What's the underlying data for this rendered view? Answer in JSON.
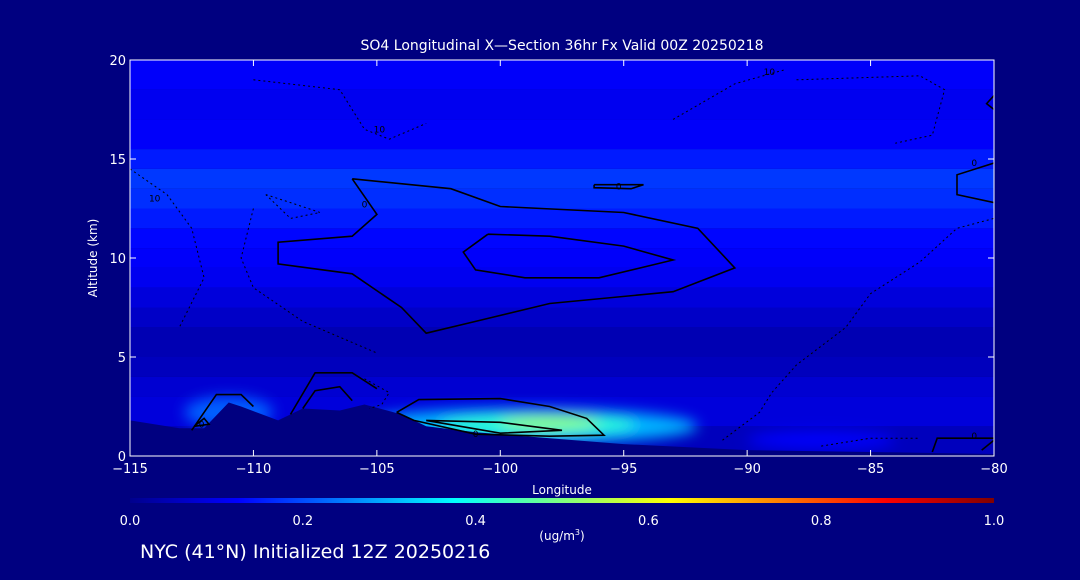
{
  "chart_data": {
    "type": "heatmap",
    "title": "SO4 Longitudinal X—Section 36hr  Fx Valid 00Z 20250218",
    "xlabel": "Longitude",
    "ylabel": "Altitude (km)",
    "xlim": [
      -115,
      -80
    ],
    "ylim": [
      0,
      20
    ],
    "xticks": [
      {
        "value": -115,
        "label": "−115"
      },
      {
        "value": -110,
        "label": "−110"
      },
      {
        "value": -105,
        "label": "−105"
      },
      {
        "value": -100,
        "label": "−100"
      },
      {
        "value": -95,
        "label": "−95"
      },
      {
        "value": -90,
        "label": "−90"
      },
      {
        "value": -85,
        "label": "−85"
      },
      {
        "value": -80,
        "label": "−80"
      }
    ],
    "yticks": [
      {
        "value": 0,
        "label": "0"
      },
      {
        "value": 5,
        "label": "5"
      },
      {
        "value": 10,
        "label": "10"
      },
      {
        "value": 15,
        "label": "15"
      },
      {
        "value": 20,
        "label": "20"
      }
    ],
    "background_layers": [
      {
        "y0": 0,
        "y1": 1.5,
        "value": 0.06
      },
      {
        "y0": 1.5,
        "y1": 3,
        "value": 0.09
      },
      {
        "y0": 3,
        "y1": 4,
        "value": 0.08
      },
      {
        "y0": 4,
        "y1": 5,
        "value": 0.06
      },
      {
        "y0": 5,
        "y1": 6.5,
        "value": 0.05
      },
      {
        "y0": 6.5,
        "y1": 7.5,
        "value": 0.07
      },
      {
        "y0": 7.5,
        "y1": 8.5,
        "value": 0.09
      },
      {
        "y0": 8.5,
        "y1": 9.5,
        "value": 0.11
      },
      {
        "y0": 9.5,
        "y1": 10.5,
        "value": 0.12
      },
      {
        "y0": 10.5,
        "y1": 11.5,
        "value": 0.13
      },
      {
        "y0": 11.5,
        "y1": 12.5,
        "value": 0.15
      },
      {
        "y0": 12.5,
        "y1": 13.5,
        "value": 0.17
      },
      {
        "y0": 13.5,
        "y1": 14.5,
        "value": 0.18
      },
      {
        "y0": 14.5,
        "y1": 15.5,
        "value": 0.15
      },
      {
        "y0": 15.5,
        "y1": 17,
        "value": 0.12
      },
      {
        "y0": 17,
        "y1": 18.5,
        "value": 0.11
      },
      {
        "y0": 18.5,
        "y1": 20,
        "value": 0.12
      }
    ],
    "plumes": [
      {
        "cx": -99,
        "cy": 1.5,
        "rx": 7,
        "ry": 0.9,
        "value": 0.3
      },
      {
        "cx": -98.5,
        "cy": 1.6,
        "rx": 4,
        "ry": 0.5,
        "value": 0.42
      },
      {
        "cx": -98,
        "cy": 1.7,
        "rx": 2,
        "ry": 0.3,
        "value": 0.52
      },
      {
        "cx": -111,
        "cy": 2.2,
        "rx": 1.8,
        "ry": 0.8,
        "value": 0.22
      },
      {
        "cx": -87,
        "cy": 0.8,
        "rx": 3,
        "ry": 0.5,
        "value": 0.12
      }
    ],
    "terrain": [
      [
        -115,
        1.8
      ],
      [
        -113,
        1.4
      ],
      [
        -112,
        1.4
      ],
      [
        -111,
        2.7
      ],
      [
        -110.5,
        2.5
      ],
      [
        -109,
        1.8
      ],
      [
        -108,
        2.4
      ],
      [
        -106.5,
        2.3
      ],
      [
        -105.5,
        2.6
      ],
      [
        -104,
        2.1
      ],
      [
        -103,
        1.5
      ],
      [
        -101,
        1.2
      ],
      [
        -98,
        0.9
      ],
      [
        -95,
        0.6
      ],
      [
        -90,
        0.3
      ],
      [
        -85,
        0.2
      ],
      [
        -80,
        0.1
      ]
    ],
    "contours_solid": [
      {
        "label": "0",
        "label_at": [
          -105.5,
          12.7
        ],
        "points": [
          [
            -106,
            14
          ],
          [
            -102,
            13.5
          ],
          [
            -100,
            12.6
          ],
          [
            -95,
            12.3
          ],
          [
            -92,
            11.5
          ],
          [
            -90.5,
            9.5
          ],
          [
            -93,
            8.3
          ],
          [
            -98,
            7.7
          ],
          [
            -101,
            6.8
          ],
          [
            -103,
            6.2
          ],
          [
            -104,
            7.5
          ],
          [
            -106,
            9.2
          ],
          [
            -109,
            9.7
          ],
          [
            -109,
            10.8
          ],
          [
            -106,
            11.1
          ],
          [
            -105,
            12.2
          ],
          [
            -106,
            14
          ]
        ]
      },
      {
        "label": "",
        "points": [
          [
            -100.5,
            11.2
          ],
          [
            -98,
            11.1
          ],
          [
            -95,
            10.6
          ],
          [
            -93,
            9.9
          ],
          [
            -96,
            9
          ],
          [
            -99,
            9
          ],
          [
            -101,
            9.4
          ],
          [
            -101.5,
            10.3
          ],
          [
            -100.5,
            11.2
          ]
        ]
      },
      {
        "label": "0",
        "label_at": [
          -95.2,
          13.6
        ],
        "points": [
          [
            -96.2,
            13.7
          ],
          [
            -94.2,
            13.7
          ],
          [
            -94.7,
            13.5
          ],
          [
            -96.2,
            13.55
          ],
          [
            -96.2,
            13.7
          ]
        ]
      },
      {
        "label": "0",
        "label_at": [
          -80.8,
          14.8
        ],
        "points": [
          [
            -80,
            14.8
          ],
          [
            -81.5,
            14.2
          ],
          [
            -81.5,
            13.2
          ],
          [
            -80,
            12.8
          ]
        ]
      },
      {
        "label": "",
        "points": [
          [
            -112.5,
            1.3
          ],
          [
            -111.5,
            3.1
          ],
          [
            -110.5,
            3.1
          ],
          [
            -110,
            2.5
          ]
        ]
      },
      {
        "label": "",
        "points": [
          [
            -108.5,
            2.1
          ],
          [
            -107.5,
            4.2
          ],
          [
            -106,
            4.2
          ],
          [
            -105,
            3.4
          ]
        ]
      },
      {
        "label": "",
        "points": [
          [
            -108,
            2.4
          ],
          [
            -107.5,
            3.3
          ],
          [
            -106.5,
            3.5
          ],
          [
            -106,
            2.8
          ]
        ]
      },
      {
        "label": "",
        "points": [
          [
            -104.2,
            2.2
          ],
          [
            -103.3,
            2.85
          ],
          [
            -100,
            2.9
          ],
          [
            -98,
            2.5
          ],
          [
            -96.5,
            1.9
          ],
          [
            -95.8,
            1.05
          ],
          [
            -98,
            1
          ],
          [
            -101,
            1.1
          ],
          [
            -103.5,
            1.8
          ],
          [
            -104.2,
            2.2
          ]
        ]
      },
      {
        "label": "0",
        "label_at": [
          -101,
          1.1
        ],
        "points": [
          [
            -103,
            1.8
          ],
          [
            -100,
            1.7
          ],
          [
            -97.5,
            1.3
          ],
          [
            -100,
            1.15
          ],
          [
            -103,
            1.8
          ]
        ]
      },
      {
        "label": "0",
        "label_at": [
          -112.1,
          1.6
        ],
        "points": [
          [
            -112.4,
            1.5
          ],
          [
            -112,
            1.9
          ],
          [
            -111.8,
            1.6
          ],
          [
            -112.4,
            1.5
          ]
        ]
      },
      {
        "label": "0",
        "label_at": [
          -80.8,
          1
        ],
        "points": [
          [
            -82.5,
            0.2
          ],
          [
            -82.3,
            0.9
          ],
          [
            -80,
            0.9
          ]
        ]
      },
      {
        "label": "",
        "points": [
          [
            -80.5,
            0.3
          ],
          [
            -80,
            0.8
          ]
        ]
      },
      {
        "label": "",
        "points": [
          [
            -80,
            18.2
          ],
          [
            -80.3,
            17.8
          ],
          [
            -80,
            17.5
          ]
        ]
      }
    ],
    "contours_dashed": [
      {
        "label": "10",
        "label_at": [
          -114,
          13
        ],
        "points": [
          [
            -115,
            14.5
          ],
          [
            -113.5,
            13.2
          ],
          [
            -112.5,
            11.5
          ],
          [
            -112,
            9
          ],
          [
            -113,
            6.5
          ]
        ]
      },
      {
        "label": "10",
        "label_at": [
          -104.9,
          16.5
        ],
        "points": [
          [
            -110,
            19
          ],
          [
            -106.5,
            18.5
          ],
          [
            -105.5,
            16.5
          ],
          [
            -104.5,
            16
          ],
          [
            -103,
            16.8
          ]
        ]
      },
      {
        "label": "10",
        "label_at": [
          -89.1,
          19.4
        ],
        "points": [
          [
            -93,
            17
          ],
          [
            -90.5,
            18.8
          ],
          [
            -88.5,
            19.5
          ]
        ]
      },
      {
        "label": "",
        "points": [
          [
            -88,
            19
          ],
          [
            -83,
            19.2
          ],
          [
            -82,
            18.5
          ],
          [
            -82.5,
            16.2
          ],
          [
            -84,
            15.8
          ]
        ]
      },
      {
        "label": "",
        "points": [
          [
            -109.5,
            13.2
          ],
          [
            -108.5,
            12.8
          ],
          [
            -107.3,
            12.3
          ],
          [
            -108.5,
            12
          ],
          [
            -109.5,
            13.2
          ]
        ]
      },
      {
        "label": "",
        "points": [
          [
            -110,
            12.5
          ],
          [
            -110.5,
            10
          ],
          [
            -110,
            8.5
          ],
          [
            -108,
            6.8
          ],
          [
            -105,
            5.2
          ]
        ]
      },
      {
        "label": "",
        "points": [
          [
            -105.5,
            3.9
          ],
          [
            -104.5,
            3.2
          ],
          [
            -104.8,
            2.6
          ],
          [
            -105.3,
            2.4
          ]
        ]
      },
      {
        "label": "",
        "points": [
          [
            -91,
            0.8
          ],
          [
            -89.5,
            2.2
          ],
          [
            -89,
            3.2
          ],
          [
            -88,
            4.6
          ],
          [
            -86,
            6.5
          ],
          [
            -85,
            8.2
          ],
          [
            -83,
            9.8
          ],
          [
            -81.5,
            11.5
          ],
          [
            -80,
            12
          ]
        ]
      },
      {
        "label": "",
        "points": [
          [
            -87,
            0.5
          ],
          [
            -85,
            0.9
          ],
          [
            -83,
            0.9
          ]
        ]
      }
    ],
    "colorbar": {
      "min": 0,
      "max": 1,
      "ticks": [
        {
          "value": 0,
          "label": "0.0"
        },
        {
          "value": 0.2,
          "label": "0.2"
        },
        {
          "value": 0.4,
          "label": "0.4"
        },
        {
          "value": 0.6,
          "label": "0.6"
        },
        {
          "value": 0.8,
          "label": "0.8"
        },
        {
          "value": 1,
          "label": "1.0"
        }
      ],
      "unit_label": "(ug/m",
      "unit_sup": "3",
      "unit_close": ")"
    }
  },
  "footer": "NYC (41°N) Initialized 12Z 20250216"
}
